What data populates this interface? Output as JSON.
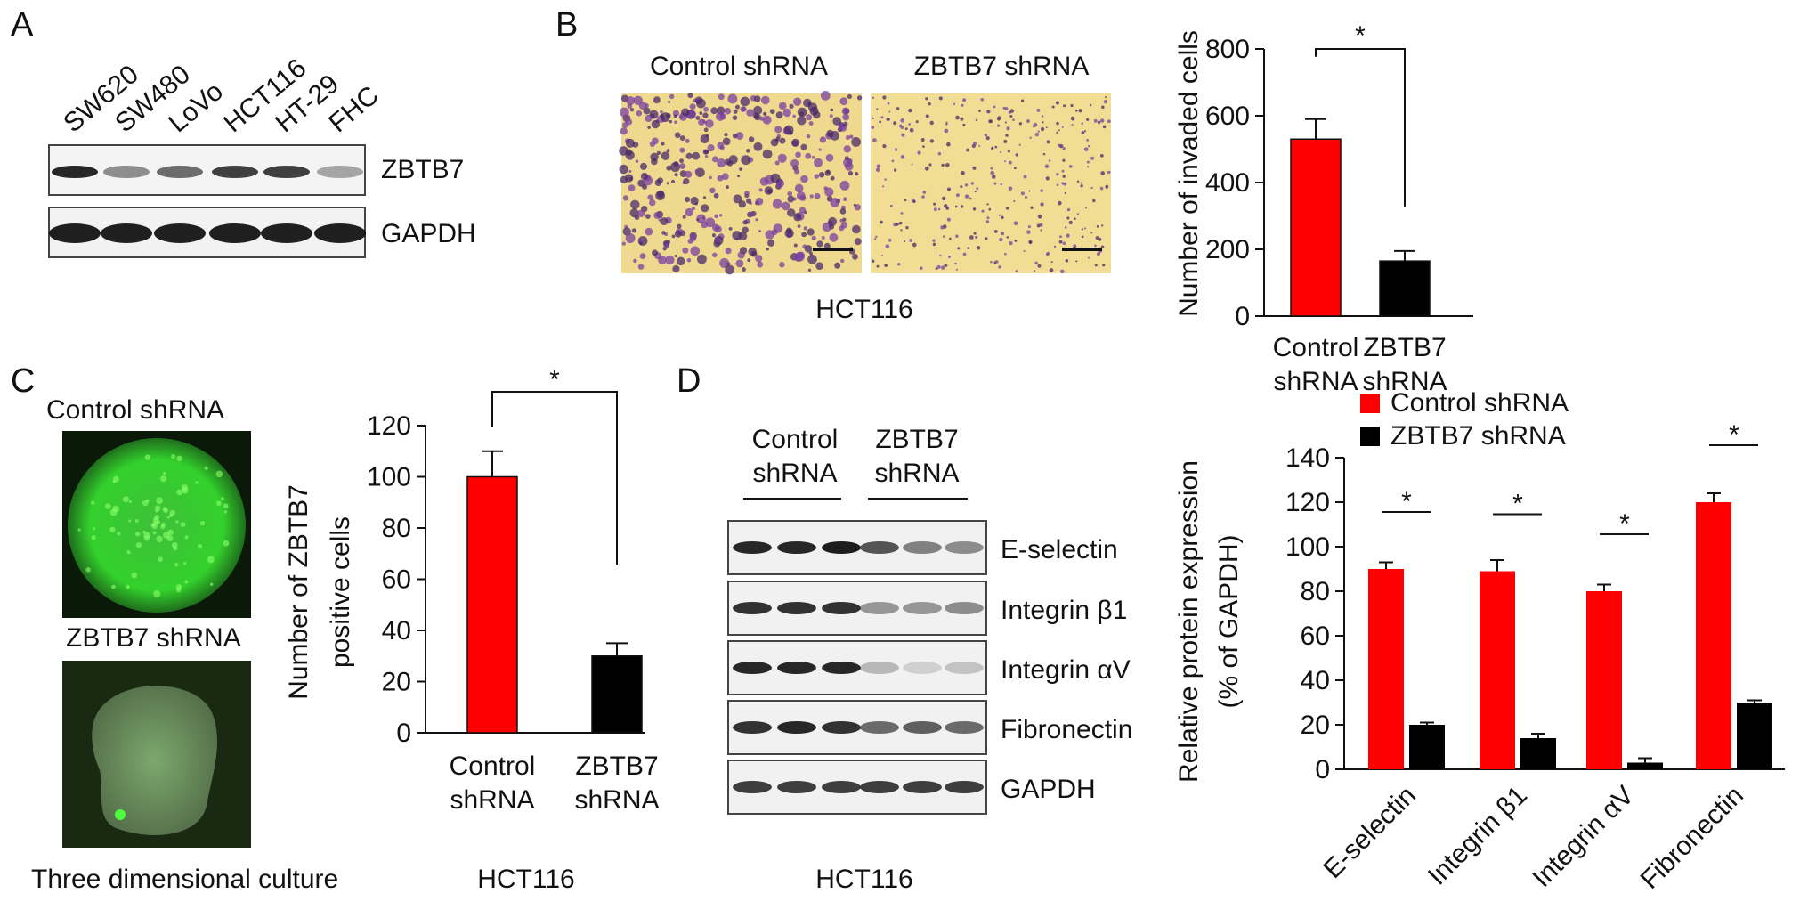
{
  "panels": {
    "a": "A",
    "b": "B",
    "c": "C",
    "d": "D"
  },
  "panelA": {
    "lanes": [
      "SW620",
      "SW480",
      "LoVo",
      "HCT116",
      "HT-29",
      "FHC"
    ],
    "blot_labels": [
      "ZBTB7",
      "GAPDH"
    ]
  },
  "panelB": {
    "image_labels": [
      "Control shRNA",
      "ZBTB7 shRNA"
    ],
    "cell_line": "HCT116"
  },
  "panelC": {
    "image_labels": [
      "Control shRNA",
      "ZBTB7 shRNA"
    ],
    "caption": "Three dimensional culture",
    "cell_line": "HCT116"
  },
  "panelD": {
    "group_labels": [
      "Control\nshRNA",
      "ZBTB7\nshRNA"
    ],
    "blot_labels": [
      "E-selectin",
      "Integrin β1",
      "Integrin αV",
      "Fibronectin",
      "GAPDH"
    ],
    "cell_line": "HCT116"
  },
  "colors": {
    "control": "#ff0000",
    "zbtb7": "#000000"
  },
  "chart_data": [
    {
      "id": "invasion",
      "type": "bar",
      "categories": [
        "Control shRNA",
        "ZBTB7 shRNA"
      ],
      "values": [
        530,
        165
      ],
      "errors": [
        60,
        30
      ],
      "ylabel": "Number of invaded cells",
      "ylim": [
        0,
        800
      ],
      "yticks": [
        0,
        200,
        400,
        600,
        800
      ],
      "significance": "*"
    },
    {
      "id": "zbtb7_positive",
      "type": "bar",
      "categories": [
        "Control shRNA",
        "ZBTB7 shRNA"
      ],
      "values": [
        100,
        30
      ],
      "errors": [
        10,
        5
      ],
      "ylabel": "Number of  ZBTB7 positive cells",
      "ylim": [
        0,
        120
      ],
      "yticks": [
        0,
        20,
        40,
        60,
        80,
        100,
        120
      ],
      "significance": "*"
    },
    {
      "id": "protein_expression",
      "type": "bar",
      "categories": [
        "E-selectin",
        "Integrin β1",
        "Integrin αV",
        "Fibronectin"
      ],
      "series": [
        {
          "name": "Control shRNA",
          "values": [
            90,
            89,
            80,
            120
          ],
          "errors": [
            3,
            5,
            3,
            4
          ]
        },
        {
          "name": "ZBTB7 shRNA",
          "values": [
            20,
            14,
            3,
            30
          ],
          "errors": [
            1,
            2,
            2,
            1
          ]
        }
      ],
      "ylabel": "Relative protein expression (% of GAPDH)",
      "ylim": [
        0,
        140
      ],
      "yticks": [
        0,
        20,
        40,
        60,
        80,
        100,
        120,
        140
      ],
      "legend": "top",
      "significance": "*"
    }
  ]
}
